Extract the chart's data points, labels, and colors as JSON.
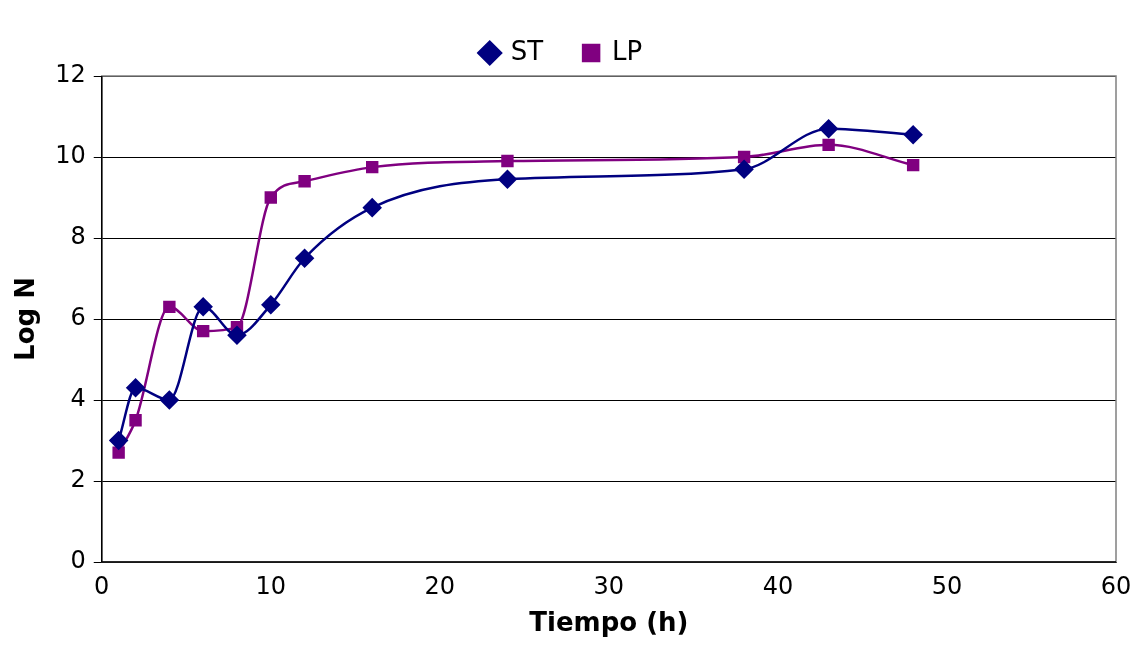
{
  "chart_data": {
    "type": "line",
    "xlabel": "Tiempo (h)",
    "ylabel": "Log N",
    "xlim": [
      0,
      60
    ],
    "xticks": [
      0,
      10,
      20,
      30,
      40,
      50,
      60
    ],
    "ylim": [
      0,
      12
    ],
    "yticks": [
      0,
      2,
      4,
      6,
      8,
      10,
      12
    ],
    "grid": "y",
    "legend": "top",
    "line_style": "solid",
    "series": [
      {
        "name": "ST",
        "color": "#000080",
        "marker": "diamond",
        "x": [
          1,
          2,
          4,
          6,
          8,
          10,
          12,
          16,
          24,
          38,
          43,
          48
        ],
        "values": [
          3.0,
          4.3,
          4.0,
          6.3,
          5.6,
          6.35,
          7.5,
          8.75,
          9.45,
          9.7,
          10.7,
          10.55
        ]
      },
      {
        "name": "LP",
        "color": "#800080",
        "marker": "square",
        "x": [
          1,
          2,
          4,
          6,
          8,
          10,
          12,
          16,
          24,
          38,
          43,
          48
        ],
        "values": [
          2.7,
          3.5,
          6.3,
          5.7,
          5.8,
          9.0,
          9.4,
          9.75,
          9.9,
          10.0,
          10.3,
          9.8
        ]
      }
    ]
  }
}
